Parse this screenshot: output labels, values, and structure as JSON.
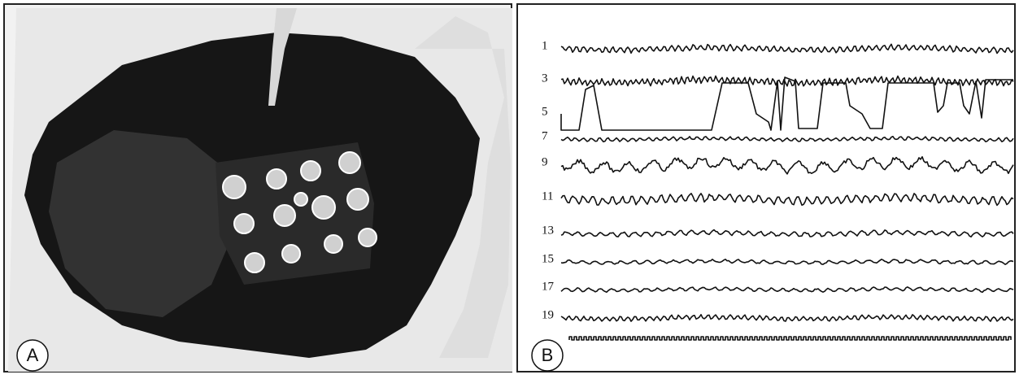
{
  "panels": [
    {
      "label": "A"
    },
    {
      "label": "B",
      "channels": [
        "1",
        "3",
        "5",
        "7",
        "9",
        "11",
        "13",
        "15",
        "17",
        "19"
      ]
    }
  ]
}
